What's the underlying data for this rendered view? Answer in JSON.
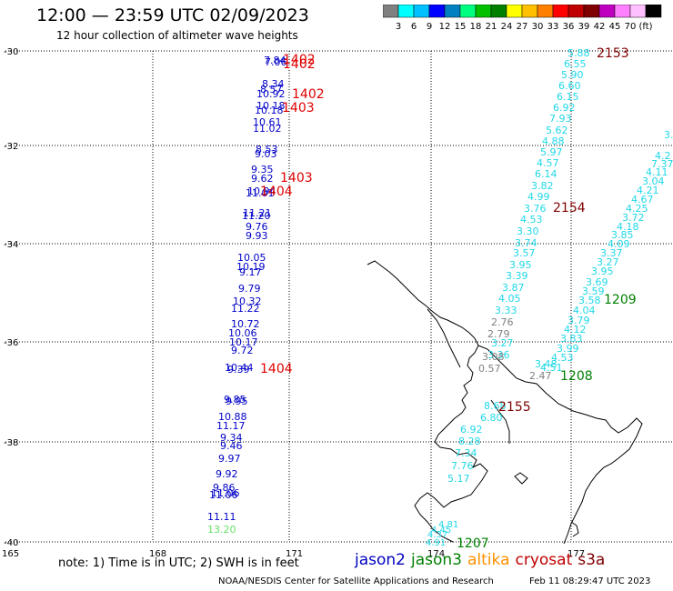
{
  "header": {
    "title": "12:00 — 23:59 UTC 02/09/2023",
    "subtitle": "12 hour collection of altimeter wave heights"
  },
  "colorbar": {
    "colors": [
      "#808080",
      "#00ffff",
      "#00c0ff",
      "#0000ff",
      "#0080c0",
      "#00ff80",
      "#00c000",
      "#008000",
      "#ffff00",
      "#ffc000",
      "#ff8000",
      "#ff0000",
      "#c00000",
      "#800000",
      "#c000c0",
      "#ff80ff",
      "#ffc0ff",
      "#000000"
    ],
    "labels": [
      "3",
      "6",
      "9",
      "12",
      "15",
      "18",
      "21",
      "24",
      "27",
      "30",
      "33",
      "36",
      "39",
      "42",
      "45",
      "70",
      "(ft)"
    ]
  },
  "axes": {
    "lat_labels": [
      "-30",
      "-32",
      "-34",
      "-36",
      "-38",
      "-40"
    ],
    "lon_labels": [
      "165",
      "168",
      "171",
      "174",
      "177"
    ]
  },
  "map_data": {
    "jason2": [
      {
        "v": "7.84"
      },
      {
        "v": "7.06"
      },
      {
        "v": "8.34"
      },
      {
        "v": "8.57"
      },
      {
        "v": "10.92"
      },
      {
        "v": "10.18"
      },
      {
        "v": "10.18"
      },
      {
        "v": "10.61"
      },
      {
        "v": "11.02"
      },
      {
        "v": "8.53"
      },
      {
        "v": "9.03"
      },
      {
        "v": "9.35"
      },
      {
        "v": "9.62"
      },
      {
        "v": "10.94"
      },
      {
        "v": "11.01"
      },
      {
        "v": "11.21"
      },
      {
        "v": "11.20"
      },
      {
        "v": "9.76"
      },
      {
        "v": "9.93"
      },
      {
        "v": "10.05"
      },
      {
        "v": "10.19"
      },
      {
        "v": "9.17"
      },
      {
        "v": "9.79"
      },
      {
        "v": "10.32"
      },
      {
        "v": "11.22"
      },
      {
        "v": "10.72"
      },
      {
        "v": "10.06"
      },
      {
        "v": "10.17"
      },
      {
        "v": "9.72"
      },
      {
        "v": "10.44"
      },
      {
        "v": "9.39"
      },
      {
        "v": "9.85"
      },
      {
        "v": "9.95"
      },
      {
        "v": "10.88"
      },
      {
        "v": "11.17"
      },
      {
        "v": "9.34"
      },
      {
        "v": "9.46"
      },
      {
        "v": "9.97"
      },
      {
        "v": "9.92"
      },
      {
        "v": "9.86"
      },
      {
        "v": "11.06"
      },
      {
        "v": "11.06"
      },
      {
        "v": "11.11"
      }
    ],
    "jason2_green": [
      {
        "v": "13.20"
      }
    ],
    "track_cyan_a": [
      "5.88",
      "6.55",
      "5.90",
      "6.60",
      "6.15",
      "6.92",
      "7.93",
      "5.62",
      "4.88",
      "5.97",
      "4.57",
      "6.14",
      "3.82",
      "4.99",
      "3.76",
      "4.53",
      "3.30",
      "3.74",
      "3.57",
      "3.95",
      "3.39",
      "3.87",
      "4.05",
      "3.33",
      "3.27",
      "3.36",
      "8.68",
      "6.80",
      "6.92",
      "8.28",
      "7.34",
      "7.76",
      "5.17"
    ],
    "track_cyan_b": [
      "3.",
      "4.2",
      "7.37",
      "4.11",
      "3.04",
      "4.21",
      "4.67",
      "4.25",
      "3.72",
      "4.18",
      "3.85",
      "4.09",
      "3.37",
      "3.27",
      "3.95",
      "3.69",
      "3.59",
      "3.58",
      "4.04",
      "3.79",
      "4.12",
      "3.83",
      "3.99",
      "4.53",
      "4.51",
      "3.48"
    ],
    "track_gray": [
      "2.76",
      "2.79",
      "3.08",
      "0.57",
      "2.47"
    ],
    "track_bottom": [
      "4.81",
      "4.45",
      "4.37",
      "4.91"
    ],
    "time_labels": [
      {
        "t": "1402",
        "c": "#e00000"
      },
      {
        "t": "1402",
        "c": "#e00000"
      },
      {
        "t": "1402",
        "c": "#e00000"
      },
      {
        "t": "1403",
        "c": "#e00000"
      },
      {
        "t": "1403",
        "c": "#e00000"
      },
      {
        "t": "1404",
        "c": "#e00000"
      },
      {
        "t": "1404",
        "c": "#e00000"
      },
      {
        "t": "2153",
        "c": "#800000"
      },
      {
        "t": "2154",
        "c": "#800000"
      },
      {
        "t": "2155",
        "c": "#800000"
      },
      {
        "t": "1209",
        "c": "#008000"
      },
      {
        "t": "1208",
        "c": "#008000"
      },
      {
        "t": "1207",
        "c": "#008000"
      }
    ]
  },
  "footer": {
    "note": "note:  1) Time is in UTC;  2) SWH is in feet",
    "credit": "NOAA/NESDIS Center for Satellite Applications and Research",
    "timestamp": "Feb 11 08:29:47 UTC 2023"
  },
  "legend": [
    {
      "name": "jason2",
      "color": "#0000c0"
    },
    {
      "name": "jason3",
      "color": "#008000"
    },
    {
      "name": "altika",
      "color": "#ff9000"
    },
    {
      "name": "cryosat",
      "color": "#c00000"
    },
    {
      "name": "s3a",
      "color": "#800000"
    }
  ]
}
